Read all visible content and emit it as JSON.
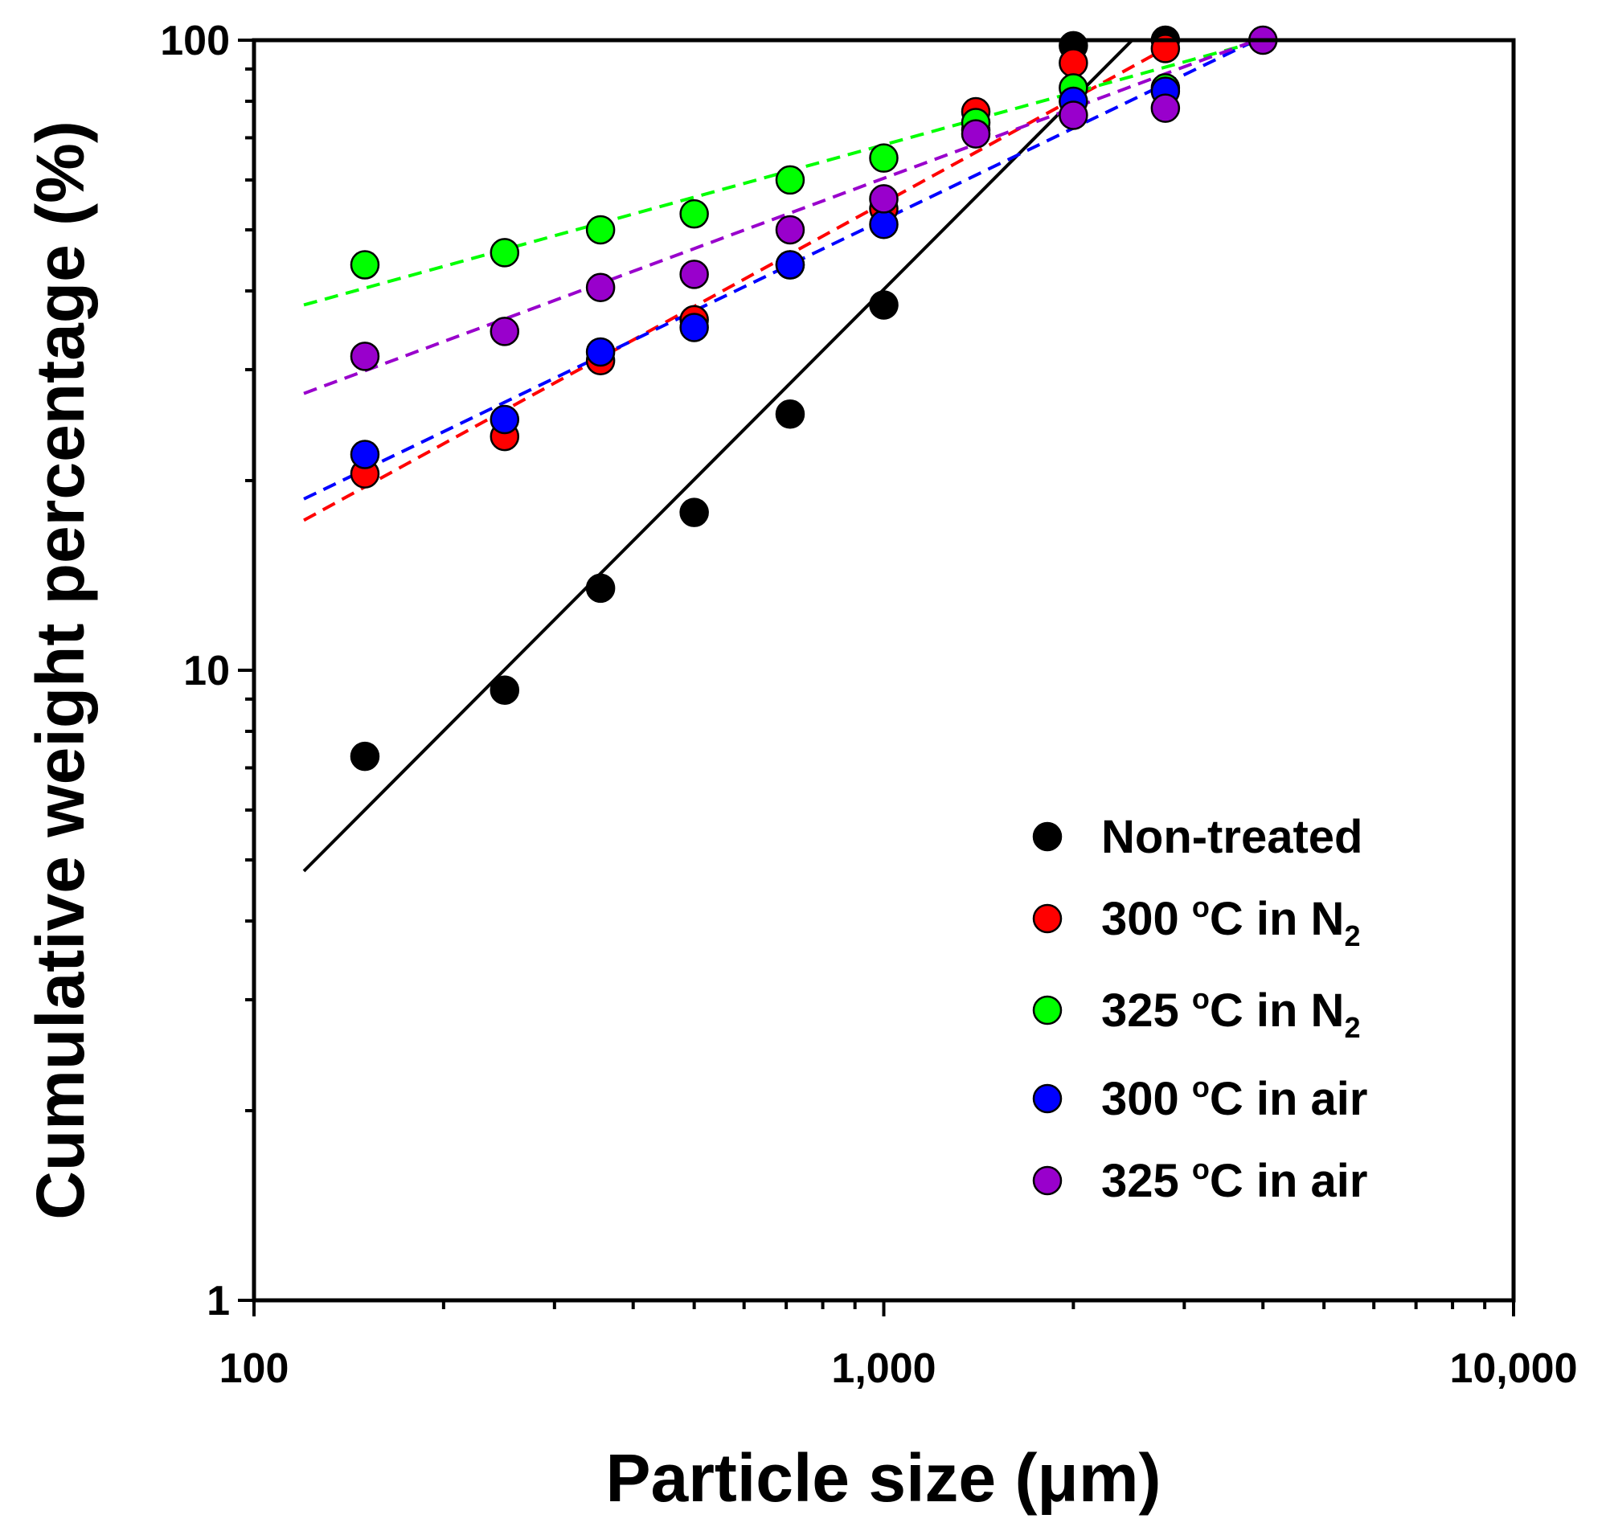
{
  "chart_data": {
    "type": "scatter",
    "title": "",
    "xlabel": "Particle size (μm)",
    "ylabel": "Cumulative weight percentage (%)",
    "xscale": "log",
    "yscale": "log",
    "xlim": [
      100,
      10000
    ],
    "ylim": [
      1,
      100
    ],
    "x_ticks": [
      100,
      1000,
      10000
    ],
    "x_tick_labels": [
      "100",
      "1,000",
      "10,000"
    ],
    "y_ticks": [
      1,
      10,
      100
    ],
    "y_tick_labels": [
      "1",
      "10",
      "100"
    ],
    "grid": false,
    "legend_position": "bottom-right",
    "series": [
      {
        "name": "Non-treated",
        "label_main": "Non-treated",
        "label_sup": "",
        "label_after": "",
        "label_sub": "",
        "color": "#000000",
        "line_style": "solid",
        "x": [
          150,
          250,
          355,
          500,
          710,
          1000,
          1400,
          2000,
          2800
        ],
        "y": [
          7.3,
          9.3,
          13.5,
          17.8,
          25.5,
          38,
          72,
          98,
          100
        ],
        "fit": {
          "x": [
            120,
            2480
          ],
          "y": [
            4.8,
            100
          ]
        }
      },
      {
        "name": "300 oC in N2",
        "label_main": "300 ",
        "label_sup": "o",
        "label_after": "C in N",
        "label_sub": "2",
        "color": "#ff0000",
        "line_style": "dashed",
        "x": [
          150,
          250,
          355,
          500,
          710,
          1000,
          1400,
          2000,
          2800
        ],
        "y": [
          20.5,
          23.5,
          31,
          36,
          44,
          54,
          77,
          92,
          97
        ],
        "fit": {
          "x": [
            120,
            2800
          ],
          "y": [
            17.3,
            97
          ]
        }
      },
      {
        "name": "325 oC in N2",
        "label_main": "325 ",
        "label_sup": "o",
        "label_after": "C in N",
        "label_sub": "2",
        "color": "#00ff00",
        "line_style": "dashed",
        "x": [
          150,
          250,
          355,
          500,
          710,
          1000,
          1400,
          2000,
          2800
        ],
        "y": [
          44,
          46,
          50,
          53,
          60,
          65,
          74,
          84,
          84
        ],
        "fit": {
          "x": [
            120,
            4000
          ],
          "y": [
            38,
            100
          ]
        }
      },
      {
        "name": "300 oC in air",
        "label_main": "300 ",
        "label_sup": "o",
        "label_after": "C in air",
        "label_sub": "",
        "color": "#0000ff",
        "line_style": "dashed",
        "x": [
          150,
          250,
          355,
          500,
          710,
          1000,
          2000,
          2800
        ],
        "y": [
          22,
          25,
          32,
          35,
          44,
          51,
          80,
          83
        ],
        "fit": {
          "x": [
            120,
            3900
          ],
          "y": [
            18.7,
            100
          ]
        }
      },
      {
        "name": "325 oC in air",
        "label_main": "325 ",
        "label_sup": "o",
        "label_after": "C in air",
        "label_sub": "",
        "color": "#9900cc",
        "line_style": "dashed",
        "x": [
          150,
          250,
          355,
          500,
          710,
          1000,
          1400,
          2000,
          2800,
          4000
        ],
        "y": [
          31.5,
          34.5,
          40.5,
          42.5,
          50,
          56,
          71,
          76,
          78,
          100
        ],
        "fit": {
          "x": [
            120,
            3900
          ],
          "y": [
            27.5,
            100
          ]
        }
      }
    ]
  }
}
